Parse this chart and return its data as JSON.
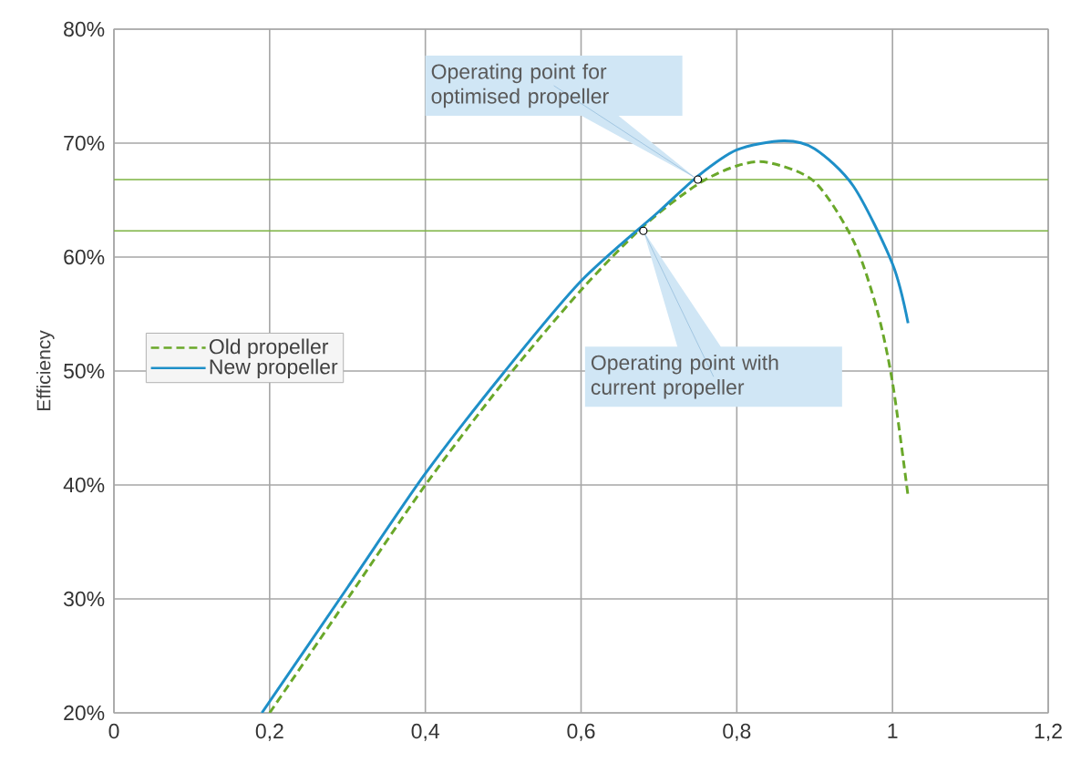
{
  "chart_data": {
    "type": "line",
    "ylabel": "Efficiency",
    "series": [
      {
        "name": "Old propeller",
        "color": "#6aa82a",
        "line_style": "dashed",
        "x": [
          0.2,
          0.3,
          0.4,
          0.5,
          0.6,
          0.68,
          0.75,
          0.8,
          0.84,
          0.9,
          0.95,
          0.98,
          1.0,
          1.02
        ],
        "values": [
          20,
          30,
          40,
          49,
          57.1,
          62.7,
          66.4,
          68,
          68.3,
          66.6,
          61.4,
          55.4,
          49,
          39
        ]
      },
      {
        "name": "New propeller",
        "color": "#1e8fc8",
        "line_style": "solid",
        "x": [
          0.19,
          0.3,
          0.4,
          0.5,
          0.6,
          0.7,
          0.75,
          0.8,
          0.86,
          0.9,
          0.95,
          1.0,
          1.02
        ],
        "values": [
          20,
          31,
          41,
          49.8,
          57.9,
          64,
          67.1,
          69.4,
          70.2,
          69.5,
          66.2,
          59.4,
          54.2
        ]
      }
    ],
    "xlim": [
      0,
      1.2
    ],
    "ylim": [
      20,
      80
    ],
    "xticks": [
      {
        "value": 0,
        "label": "0"
      },
      {
        "value": 0.2,
        "label": "0,2"
      },
      {
        "value": 0.4,
        "label": "0,4"
      },
      {
        "value": 0.6,
        "label": "0,6"
      },
      {
        "value": 0.8,
        "label": "0,8"
      },
      {
        "value": 1.0,
        "label": "1"
      },
      {
        "value": 1.2,
        "label": "1,2"
      }
    ],
    "yticks": [
      {
        "value": 20,
        "label": "20%"
      },
      {
        "value": 30,
        "label": "30%"
      },
      {
        "value": 40,
        "label": "40%"
      },
      {
        "value": 50,
        "label": "50%"
      },
      {
        "value": 60,
        "label": "60%"
      },
      {
        "value": 70,
        "label": "70%"
      },
      {
        "value": 80,
        "label": "80%"
      }
    ],
    "ref_lines": [
      {
        "axis": "y",
        "value": 66.8,
        "color": "#7cb342"
      },
      {
        "axis": "y",
        "value": 62.3,
        "color": "#7cb342"
      }
    ],
    "annotations": [
      {
        "text": "Operating point for optimised propeller",
        "x": 0.75,
        "y": 66.8
      },
      {
        "text": "Operating point with current propeller",
        "x": 0.68,
        "y": 62.3
      }
    ],
    "grid": true,
    "legend": "left"
  }
}
